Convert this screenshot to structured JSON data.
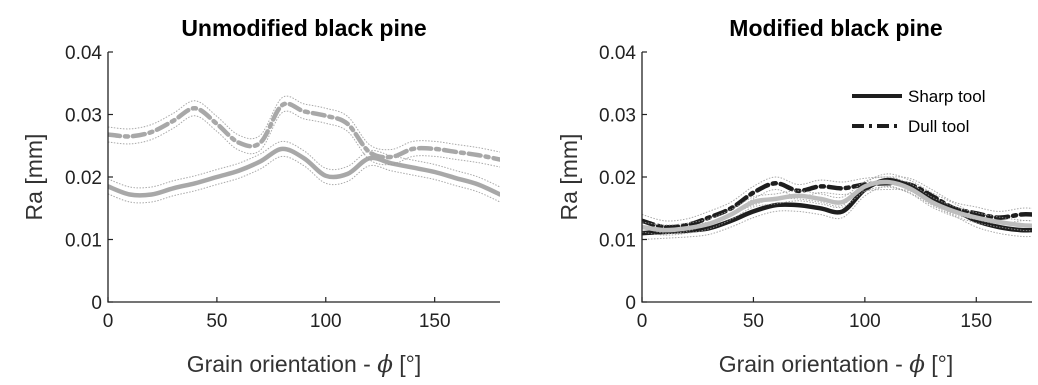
{
  "chart_data": [
    {
      "type": "line",
      "title": "Unmodified black pine",
      "xlabel": "Grain orientation - ",
      "xlabel_symbol": "ϕ",
      "xlabel_unit": " [°]",
      "ylabel": "Ra [mm]",
      "xlim": [
        0,
        180
      ],
      "ylim": [
        0,
        0.04
      ],
      "xticks": [
        0,
        50,
        100,
        150
      ],
      "yticks": [
        0,
        0.01,
        0.02,
        0.03,
        0.04
      ],
      "xtick_labels": [
        "0",
        "50",
        "100",
        "150"
      ],
      "ytick_labels": [
        "0",
        "0.01",
        "0.02",
        "0.03",
        "0.04"
      ],
      "grid": false,
      "x": [
        0,
        10,
        20,
        30,
        40,
        50,
        60,
        70,
        80,
        90,
        100,
        110,
        120,
        130,
        140,
        150,
        160,
        170,
        180
      ],
      "series": [
        {
          "style": "solid",
          "color": "#a8a8a8",
          "band": 0.0012,
          "values": [
            0.0185,
            0.0172,
            0.0172,
            0.0182,
            0.019,
            0.02,
            0.021,
            0.0225,
            0.0245,
            0.023,
            0.0202,
            0.0205,
            0.023,
            0.0222,
            0.0215,
            0.0208,
            0.0198,
            0.0188,
            0.0172
          ]
        },
        {
          "style": "dashdot",
          "color": "#a8a8a8",
          "band": 0.0012,
          "values": [
            0.0268,
            0.0265,
            0.0272,
            0.029,
            0.031,
            0.0285,
            0.0255,
            0.0255,
            0.0315,
            0.0305,
            0.0298,
            0.0285,
            0.024,
            0.0232,
            0.0245,
            0.0245,
            0.024,
            0.0235,
            0.0228
          ]
        }
      ]
    },
    {
      "type": "line",
      "title": "Modified black pine",
      "xlabel": "Grain orientation - ",
      "xlabel_symbol": "ϕ",
      "xlabel_unit": " [°]",
      "ylabel": "Ra [mm]",
      "xlim": [
        0,
        175
      ],
      "ylim": [
        0,
        0.04
      ],
      "xticks": [
        0,
        50,
        100,
        150
      ],
      "yticks": [
        0,
        0.01,
        0.02,
        0.03,
        0.04
      ],
      "xtick_labels": [
        "0",
        "50",
        "100",
        "150"
      ],
      "ytick_labels": [
        "0",
        "0.01",
        "0.02",
        "0.03",
        "0.04"
      ],
      "grid": false,
      "legend": {
        "position": "top-right",
        "entries": [
          {
            "label": "Sharp tool",
            "style": "solid"
          },
          {
            "label": "Dull tool",
            "style": "dashdot"
          }
        ]
      },
      "x": [
        0,
        10,
        20,
        30,
        40,
        50,
        60,
        70,
        80,
        90,
        100,
        110,
        120,
        130,
        140,
        150,
        160,
        170,
        175
      ],
      "series": [
        {
          "name": "Sharp tool",
          "style": "solid",
          "color": "#1e1e1e",
          "band": 0.001,
          "values": [
            0.011,
            0.0112,
            0.0114,
            0.0118,
            0.013,
            0.0145,
            0.0155,
            0.0155,
            0.015,
            0.0145,
            0.018,
            0.0195,
            0.0185,
            0.0165,
            0.0148,
            0.013,
            0.012,
            0.0115,
            0.0115
          ]
        },
        {
          "name": "Dull tool",
          "style": "dashdot",
          "color": "#1e1e1e",
          "band": 0.001,
          "values": [
            0.013,
            0.012,
            0.0123,
            0.0135,
            0.015,
            0.0175,
            0.019,
            0.0178,
            0.0185,
            0.0182,
            0.0188,
            0.019,
            0.0188,
            0.017,
            0.015,
            0.0142,
            0.0135,
            0.014,
            0.014
          ]
        },
        {
          "style": "solid",
          "color": "#bdbdbd",
          "band": 0.0008,
          "values": [
            0.012,
            0.0115,
            0.0118,
            0.0125,
            0.014,
            0.016,
            0.0165,
            0.017,
            0.0165,
            0.016,
            0.0185,
            0.0192,
            0.0182,
            0.016,
            0.0145,
            0.0135,
            0.0128,
            0.0123,
            0.0122
          ]
        }
      ]
    }
  ]
}
